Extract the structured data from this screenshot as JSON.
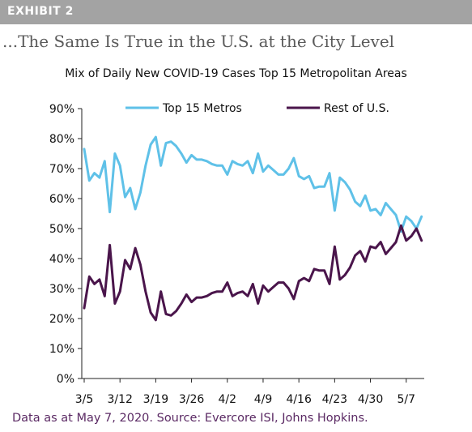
{
  "exhibit": {
    "label": "EXHIBIT 2"
  },
  "headline": "...The Same Is True in the U.S. at the City Level",
  "source_note": "Data as at May 7, 2020. Source: Evercore ISI, Johns Hopkins.",
  "colors": {
    "top15": "#5fc1e8",
    "rest": "#4a154b",
    "banner": "#a3a3a3",
    "source_text": "#5b2a64"
  },
  "chart_data": {
    "type": "line",
    "title": "Mix of Daily New COVID-19 Cases Top 15 Metropolitan Areas",
    "xlabel": "",
    "ylabel": "",
    "ylim": [
      0,
      90
    ],
    "y_ticks": [
      0,
      10,
      20,
      30,
      40,
      50,
      60,
      70,
      80,
      90
    ],
    "y_tick_labels": [
      "0%",
      "10%",
      "20%",
      "30%",
      "40%",
      "50%",
      "60%",
      "70%",
      "80%",
      "90%"
    ],
    "x_tick_labels": [
      "3/5",
      "3/12",
      "3/19",
      "3/26",
      "4/2",
      "4/9",
      "4/16",
      "4/23",
      "4/30",
      "5/7"
    ],
    "legend_position": "top",
    "grid": false,
    "series": [
      {
        "name": "Top 15 Metros",
        "color": "#5fc1e8",
        "values": [
          76.5,
          66,
          68.5,
          67,
          72.5,
          55.5,
          75,
          71,
          60.5,
          63.5,
          56.5,
          62,
          71,
          78,
          80.5,
          71,
          78.5,
          79,
          77.5,
          75,
          72,
          74.5,
          73,
          73,
          72.5,
          71.5,
          71,
          71,
          68,
          72.5,
          71.5,
          71,
          72.5,
          68.5,
          75,
          69,
          71,
          69.5,
          68,
          68,
          70,
          73.5,
          67.5,
          66.5,
          67.5,
          63.5,
          64,
          64,
          68.5,
          56,
          67,
          65.5,
          63,
          59,
          57.5,
          61,
          56,
          56.5,
          54.5,
          58.5,
          56.5,
          54.5,
          49,
          54,
          52.5,
          50,
          54
        ]
      },
      {
        "name": "Rest of U.S.",
        "color": "#4a154b",
        "values": [
          23.5,
          34,
          31.5,
          33,
          27.5,
          44.5,
          25,
          29,
          39.5,
          36.5,
          43.5,
          38,
          29,
          22,
          19.5,
          29,
          21.5,
          21,
          22.5,
          25,
          28,
          25.5,
          27,
          27,
          27.5,
          28.5,
          29,
          29,
          32,
          27.5,
          28.5,
          29,
          27.5,
          31.5,
          25,
          31,
          29,
          30.5,
          32,
          32,
          30,
          26.5,
          32.5,
          33.5,
          32.5,
          36.5,
          36,
          36,
          31.5,
          44,
          33,
          34.5,
          37,
          41,
          42.5,
          39,
          44,
          43.5,
          45.5,
          41.5,
          43.5,
          45.5,
          51,
          46,
          47.5,
          50,
          46
        ]
      }
    ]
  }
}
